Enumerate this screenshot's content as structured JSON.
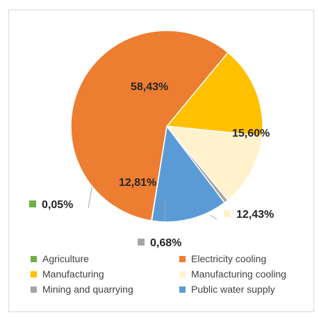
{
  "chart_data": {
    "type": "pie",
    "title": "",
    "slices": [
      {
        "label": "Agriculture",
        "value": 0.05,
        "display": "0,05%",
        "color": "#70ad47"
      },
      {
        "label": "Electricity cooling",
        "value": 58.43,
        "display": "58,43%",
        "color": "#ed7d31"
      },
      {
        "label": "Manufacturing",
        "value": 15.6,
        "display": "15,60%",
        "color": "#ffc000"
      },
      {
        "label": "Manufacturing cooling",
        "value": 12.43,
        "display": "12,43%",
        "color": "#fff2cc"
      },
      {
        "label": "Mining and quarrying",
        "value": 0.68,
        "display": "0,68%",
        "color": "#a5a5a5"
      },
      {
        "label": "Public water supply",
        "value": 12.81,
        "display": "12,81%",
        "color": "#5b9bd5"
      }
    ],
    "legend": {
      "position": "bottom",
      "items": [
        "Agriculture",
        "Electricity cooling",
        "Manufacturing",
        "Manufacturing cooling",
        "Mining and quarrying",
        "Public water supply"
      ]
    }
  }
}
